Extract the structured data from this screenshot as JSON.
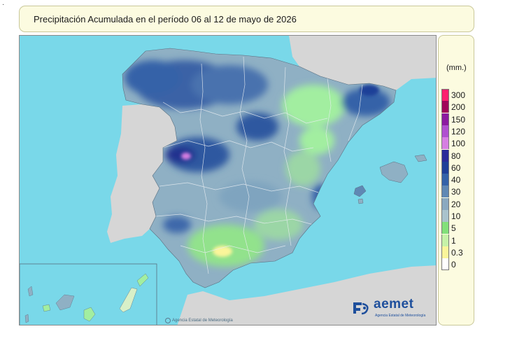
{
  "title": "Precipitación Acumulada en el período 06 al 12 de mayo de 2026",
  "legend": {
    "unit": "(mm.)",
    "items": [
      {
        "label": "300",
        "color": "#ff1e6e"
      },
      {
        "label": "200",
        "color": "#a0045a"
      },
      {
        "label": "150",
        "color": "#8c1aa0"
      },
      {
        "label": "120",
        "color": "#b04fd0"
      },
      {
        "label": "100",
        "color": "#d67ee2"
      },
      {
        "label": "80",
        "color": "#2a2a9a"
      },
      {
        "label": "60",
        "color": "#1f3f98"
      },
      {
        "label": "40",
        "color": "#3462a8"
      },
      {
        "label": "30",
        "color": "#5f88b4"
      },
      {
        "label": "20",
        "color": "#8aa9c0"
      },
      {
        "label": "10",
        "color": "#a9c3cc"
      },
      {
        "label": "5",
        "color": "#82e07a"
      },
      {
        "label": "1",
        "color": "#c6f2a8"
      },
      {
        "label": "0.3",
        "color": "#fbf59a"
      },
      {
        "label": "0",
        "color": "#ffffff"
      }
    ]
  },
  "map": {
    "sea_color": "#79d8e9",
    "land_outside_color": "#d6d6d6",
    "spain_base_color": "#8fb0c4"
  },
  "logo": {
    "name": "aemet",
    "subtitle": "Agencia Estatal de Meteorología",
    "icon": "aemet-logo-icon"
  },
  "footer": {
    "agency": "Agencia Estatal de Meteorología"
  }
}
